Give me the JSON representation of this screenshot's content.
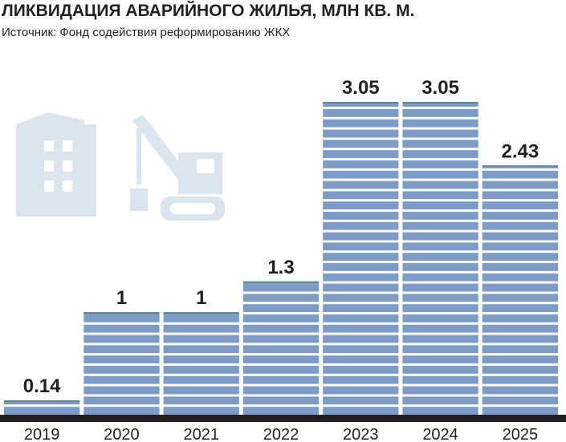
{
  "chart_data": {
    "type": "bar",
    "title": "ЛИКВИДАЦИЯ АВАРИЙНОГО ЖИЛЬЯ, МЛН КВ. М.",
    "subtitle": "Источник: Фонд содействия реформированию ЖКХ",
    "categories": [
      "2019",
      "2020",
      "2021",
      "2022",
      "2023",
      "2024",
      "2025"
    ],
    "values": [
      0.14,
      1,
      1,
      1.3,
      3.05,
      3.05,
      2.43
    ],
    "color": "#7d9cc5"
  }
}
